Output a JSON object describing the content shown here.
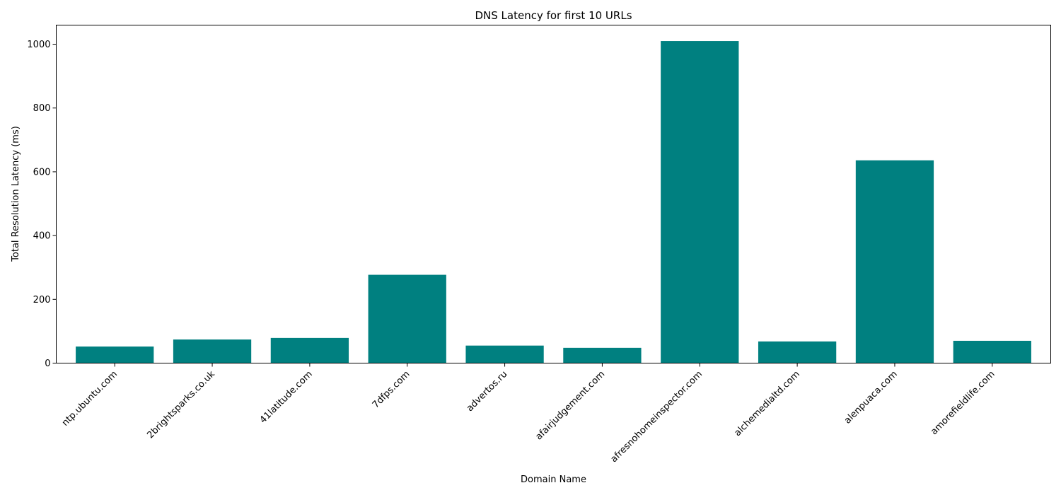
{
  "chart_data": {
    "type": "bar",
    "title": "DNS Latency for first 10 URLs",
    "xlabel": "Domain Name",
    "ylabel": "Total Resolution Latency (ms)",
    "categories": [
      "ntp.ubuntu.com",
      "2brightsparks.co.uk",
      "41latitude.com",
      "7dfps.com",
      "advertos.ru",
      "afairjudgement.com",
      "afresnohomeinspector.com",
      "alchemedialtd.com",
      "alenpuaca.com",
      "amorefieldlife.com"
    ],
    "values": [
      52,
      74,
      79,
      277,
      55,
      48,
      1010,
      68,
      636,
      70
    ],
    "ylim": [
      0,
      1060
    ],
    "yticks": [
      0,
      200,
      400,
      600,
      800,
      1000
    ],
    "color": "#008080",
    "grid": false
  }
}
